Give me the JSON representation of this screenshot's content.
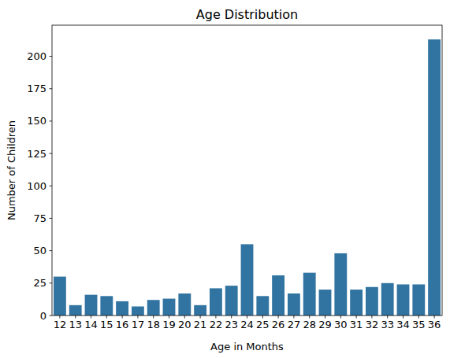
{
  "chart_data": {
    "type": "bar",
    "title": "Age Distribution",
    "x_label": "Age in Months",
    "y_label": "Number of Children",
    "categories": [
      "12",
      "13",
      "14",
      "15",
      "16",
      "17",
      "18",
      "19",
      "20",
      "21",
      "22",
      "23",
      "24",
      "25",
      "26",
      "27",
      "28",
      "29",
      "30",
      "31",
      "32",
      "33",
      "34",
      "35",
      "36"
    ],
    "values": [
      30,
      8,
      16,
      15,
      11,
      7,
      12,
      13,
      17,
      8,
      21,
      23,
      55,
      15,
      31,
      17,
      33,
      20,
      48,
      20,
      22,
      25,
      24,
      24,
      213
    ],
    "color": "#3274a1",
    "ylim": [
      0,
      224
    ],
    "yticks": [
      0,
      25,
      50,
      75,
      100,
      125,
      150,
      175,
      200
    ],
    "grid": false
  }
}
